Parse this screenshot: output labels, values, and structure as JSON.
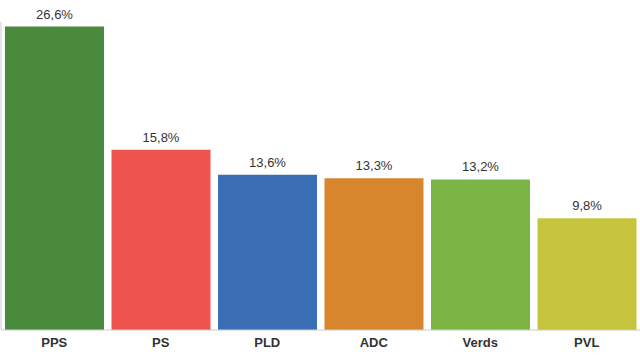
{
  "chart_data": {
    "type": "bar",
    "categories": [
      "PPS",
      "PS",
      "PLD",
      "ADC",
      "Verds",
      "PVL"
    ],
    "values": [
      26.6,
      15.8,
      13.6,
      13.3,
      13.2,
      9.8
    ],
    "value_labels": [
      "26,6%",
      "15,8%",
      "13,6%",
      "13,3%",
      "13,2%",
      "9,8%"
    ],
    "colors": [
      "#4a8a3c",
      "#ef5350",
      "#3a6fb5",
      "#d7862e",
      "#7cb544",
      "#c5c43c"
    ],
    "ylim": [
      0,
      27
    ],
    "yticks": [],
    "grid": false,
    "data_labels": true,
    "tick_labels": "x"
  }
}
